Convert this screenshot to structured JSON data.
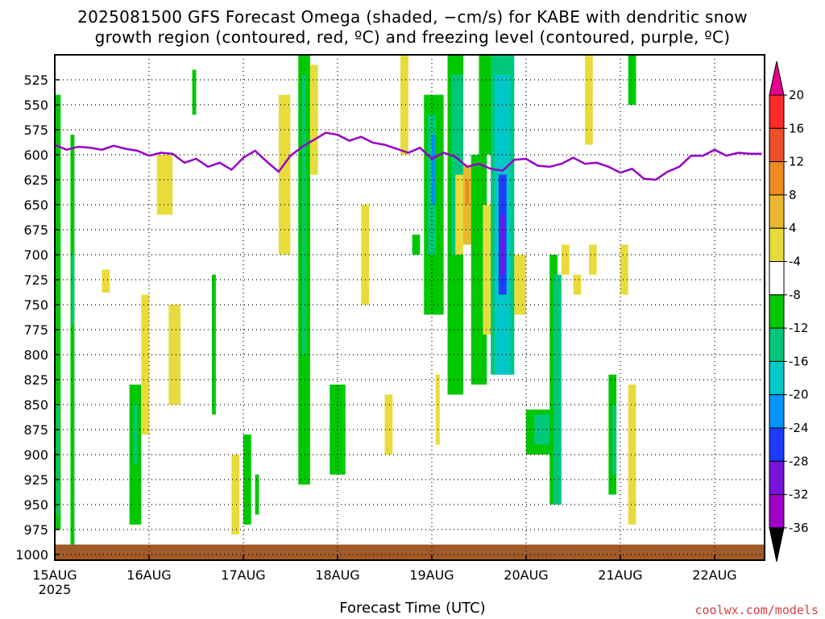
{
  "chart_title_line1": "2025081500 GFS Forecast Omega (shaded, −cm/s) for KABE with dendritic snow",
  "chart_title_line2": "growth region (contoured, red, ºC) and freezing level (contoured, purple, ºC)",
  "xlabel": "Forecast Time (UTC)",
  "credit": "coolwx.com/models",
  "chart_data": {
    "type": "heatmap",
    "title": "2025081500 GFS Forecast Omega (shaded, −cm/s) for KABE with dendritic snow growth region (contoured, red, ºC) and freezing level (contoured, purple, ºC)",
    "xlabel": "Forecast Time (UTC)",
    "ylabel": "",
    "x_ticks": [
      "15AUG",
      "16AUG",
      "17AUG",
      "18AUG",
      "19AUG",
      "20AUG",
      "21AUG",
      "22AUG"
    ],
    "x_year_label": "2025",
    "xlim_hours": [
      0,
      180
    ],
    "y_ticks": [
      525,
      550,
      575,
      600,
      625,
      650,
      675,
      700,
      725,
      750,
      775,
      800,
      825,
      850,
      875,
      900,
      925,
      950,
      975,
      1000
    ],
    "ylim": [
      1000,
      500
    ],
    "colorbar": {
      "levels": [
        20,
        16,
        12,
        8,
        4,
        -4,
        -8,
        -12,
        -16,
        -20,
        -24,
        -28,
        -32,
        -36
      ],
      "colors": [
        "#ff2a2a",
        "#f05028",
        "#ec8c20",
        "#e8b830",
        "#e8dc3c",
        "#ffffff",
        "#00c800",
        "#00c878",
        "#00c8c8",
        "#0096ff",
        "#1e3cff",
        "#7814dc",
        "#a000c8",
        "#aaaaaa",
        "#000000",
        "#e6008c"
      ]
    },
    "freezing_level": {
      "color": "#9600c8",
      "x_hours": [
        0,
        3,
        6,
        9,
        12,
        15,
        18,
        21,
        24,
        27,
        30,
        33,
        36,
        39,
        42,
        45,
        48,
        51,
        54,
        57,
        60,
        63,
        66,
        69,
        72,
        75,
        78,
        81,
        84,
        87,
        90,
        93,
        96,
        99,
        102,
        105,
        108,
        111,
        114,
        117,
        120,
        123,
        126,
        129,
        132,
        135,
        138,
        141,
        144,
        147,
        150,
        153,
        156,
        159,
        162,
        165,
        168,
        171,
        174,
        177,
        180
      ],
      "y_hpa": [
        590,
        595,
        592,
        593,
        595,
        591,
        594,
        596,
        601,
        598,
        599,
        608,
        604,
        612,
        608,
        615,
        603,
        596,
        607,
        617,
        601,
        592,
        585,
        578,
        580,
        586,
        582,
        588,
        590,
        594,
        598,
        593,
        604,
        598,
        602,
        612,
        609,
        614,
        616,
        605,
        604,
        611,
        612,
        609,
        603,
        609,
        608,
        612,
        618,
        614,
        624,
        625,
        617,
        612,
        601,
        601,
        595,
        601,
        598,
        599,
        599
      ]
    },
    "omega_cells": [
      {
        "x": [
          0,
          1.5
        ],
        "y": [
          540,
          975
        ],
        "value": -8
      },
      {
        "x": [
          0.5,
          1.2
        ],
        "y": [
          850,
          960
        ],
        "value": -12
      },
      {
        "x": [
          4,
          5
        ],
        "y": [
          580,
          990
        ],
        "value": -8
      },
      {
        "x": [
          4.3,
          4.8
        ],
        "y": [
          700,
          770
        ],
        "value": -12
      },
      {
        "x": [
          12,
          14
        ],
        "y": [
          715,
          738
        ],
        "value": 4
      },
      {
        "x": [
          19,
          22
        ],
        "y": [
          830,
          970
        ],
        "value": -8
      },
      {
        "x": [
          20,
          21
        ],
        "y": [
          850,
          910
        ],
        "value": -12
      },
      {
        "x": [
          22,
          24
        ],
        "y": [
          740,
          880
        ],
        "value": 4
      },
      {
        "x": [
          26,
          30
        ],
        "y": [
          600,
          660
        ],
        "value": 4
      },
      {
        "x": [
          29,
          32
        ],
        "y": [
          750,
          850
        ],
        "value": 4
      },
      {
        "x": [
          35,
          36
        ],
        "y": [
          515,
          560
        ],
        "value": -8
      },
      {
        "x": [
          40,
          41
        ],
        "y": [
          720,
          860
        ],
        "value": -8
      },
      {
        "x": [
          45,
          47
        ],
        "y": [
          900,
          980
        ],
        "value": 4
      },
      {
        "x": [
          48,
          50
        ],
        "y": [
          880,
          970
        ],
        "value": -8
      },
      {
        "x": [
          51,
          52
        ],
        "y": [
          920,
          960
        ],
        "value": -8
      },
      {
        "x": [
          57,
          60
        ],
        "y": [
          540,
          700
        ],
        "value": 4
      },
      {
        "x": [
          62,
          65
        ],
        "y": [
          500,
          930
        ],
        "value": -8
      },
      {
        "x": [
          63,
          64
        ],
        "y": [
          520,
          800
        ],
        "value": -12
      },
      {
        "x": [
          65,
          67
        ],
        "y": [
          510,
          620
        ],
        "value": 4
      },
      {
        "x": [
          70,
          74
        ],
        "y": [
          830,
          920
        ],
        "value": -8
      },
      {
        "x": [
          78,
          80
        ],
        "y": [
          650,
          750
        ],
        "value": 4
      },
      {
        "x": [
          84,
          86
        ],
        "y": [
          840,
          900
        ],
        "value": 4
      },
      {
        "x": [
          88,
          90
        ],
        "y": [
          500,
          600
        ],
        "value": 4
      },
      {
        "x": [
          91,
          93
        ],
        "y": [
          680,
          700
        ],
        "value": -8
      },
      {
        "x": [
          94,
          99
        ],
        "y": [
          540,
          760
        ],
        "value": -8
      },
      {
        "x": [
          95,
          97
        ],
        "y": [
          560,
          700
        ],
        "value": -12
      },
      {
        "x": [
          96,
          97
        ],
        "y": [
          580,
          650
        ],
        "value": -20
      },
      {
        "x": [
          97,
          98
        ],
        "y": [
          820,
          890
        ],
        "value": 4
      },
      {
        "x": [
          100,
          104
        ],
        "y": [
          500,
          840
        ],
        "value": -8
      },
      {
        "x": [
          101,
          104
        ],
        "y": [
          520,
          700
        ],
        "value": -12
      },
      {
        "x": [
          102,
          104
        ],
        "y": [
          620,
          700
        ],
        "value": 4
      },
      {
        "x": [
          104,
          106
        ],
        "y": [
          610,
          690
        ],
        "value": 8
      },
      {
        "x": [
          104.5,
          105.5
        ],
        "y": [
          625,
          650
        ],
        "value": 12
      },
      {
        "x": [
          106,
          110
        ],
        "y": [
          600,
          830
        ],
        "value": -8
      },
      {
        "x": [
          108,
          112
        ],
        "y": [
          500,
          600
        ],
        "value": -8
      },
      {
        "x": [
          109,
          112
        ],
        "y": [
          650,
          780
        ],
        "value": 4
      },
      {
        "x": [
          111,
          117
        ],
        "y": [
          500,
          820
        ],
        "value": -12
      },
      {
        "x": [
          112,
          116
        ],
        "y": [
          520,
          820
        ],
        "value": -16
      },
      {
        "x": [
          113,
          115
        ],
        "y": [
          620,
          740
        ],
        "value": -24
      },
      {
        "x": [
          113.5,
          114.5
        ],
        "y": [
          660,
          720
        ],
        "value": -28
      },
      {
        "x": [
          117,
          120
        ],
        "y": [
          700,
          760
        ],
        "value": 4
      },
      {
        "x": [
          120,
          127
        ],
        "y": [
          855,
          900
        ],
        "value": -8
      },
      {
        "x": [
          122,
          126
        ],
        "y": [
          860,
          890
        ],
        "value": -12
      },
      {
        "x": [
          126,
          128
        ],
        "y": [
          700,
          950
        ],
        "value": -8
      },
      {
        "x": [
          127,
          129
        ],
        "y": [
          720,
          950
        ],
        "value": -12
      },
      {
        "x": [
          129,
          131
        ],
        "y": [
          690,
          720
        ],
        "value": 4
      },
      {
        "x": [
          132,
          134
        ],
        "y": [
          720,
          740
        ],
        "value": 4
      },
      {
        "x": [
          135,
          137
        ],
        "y": [
          500,
          590
        ],
        "value": 4
      },
      {
        "x": [
          136,
          138
        ],
        "y": [
          690,
          720
        ],
        "value": 4
      },
      {
        "x": [
          141,
          143
        ],
        "y": [
          820,
          940
        ],
        "value": -8
      },
      {
        "x": [
          142,
          143
        ],
        "y": [
          850,
          920
        ],
        "value": -12
      },
      {
        "x": [
          144,
          146
        ],
        "y": [
          690,
          740
        ],
        "value": 4
      },
      {
        "x": [
          146,
          148
        ],
        "y": [
          500,
          550
        ],
        "value": -8
      },
      {
        "x": [
          146,
          148
        ],
        "y": [
          830,
          970
        ],
        "value": 4
      }
    ],
    "surface_terrain_color": "#a05a28"
  }
}
